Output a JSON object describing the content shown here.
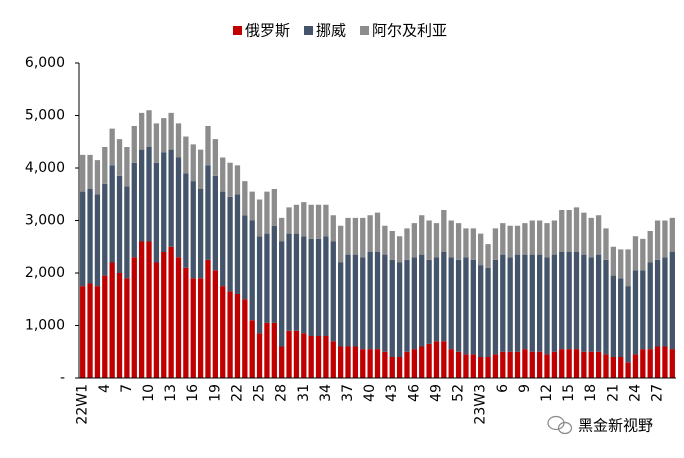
{
  "chart_data": {
    "type": "stacked_bar",
    "legend_position": "top",
    "categories": [
      "22W1",
      null,
      null,
      "4",
      null,
      null,
      "7",
      null,
      null,
      "10",
      null,
      null,
      "13",
      null,
      null,
      "16",
      null,
      null,
      "19",
      null,
      null,
      "22",
      null,
      null,
      "25",
      null,
      null,
      "28",
      null,
      null,
      "31",
      null,
      null,
      "34",
      null,
      null,
      "37",
      null,
      null,
      "40",
      null,
      null,
      "43",
      null,
      null,
      "46",
      null,
      null,
      "49",
      null,
      null,
      "52",
      null,
      null,
      "23W3",
      null,
      null,
      "6",
      null,
      null,
      "9",
      null,
      null,
      "12",
      null,
      null,
      "15",
      null,
      null,
      "18",
      null,
      null,
      "21",
      null,
      null,
      "24",
      null,
      null,
      "27",
      null,
      null
    ],
    "series": [
      {
        "name": "俄罗斯",
        "color": "#c00000",
        "values": [
          1750,
          1800,
          1750,
          1950,
          2200,
          2000,
          1900,
          2300,
          2600,
          2600,
          2200,
          2400,
          2500,
          2300,
          2100,
          1900,
          1900,
          2250,
          2050,
          1750,
          1650,
          1600,
          1500,
          1100,
          850,
          1050,
          1050,
          600,
          900,
          900,
          850,
          800,
          800,
          800,
          700,
          600,
          600,
          600,
          550,
          550,
          550,
          500,
          400,
          400,
          500,
          550,
          600,
          650,
          700,
          700,
          550,
          500,
          450,
          450,
          400,
          400,
          450,
          500,
          500,
          500,
          550,
          500,
          500,
          450,
          500,
          550,
          550,
          550,
          500,
          500,
          500,
          450,
          400,
          400,
          300,
          450,
          550,
          550,
          600,
          600,
          550
        ]
      },
      {
        "name": "挪威",
        "color": "#44546a",
        "values": [
          1800,
          1800,
          1750,
          1750,
          1850,
          1850,
          1750,
          1800,
          1750,
          1800,
          1900,
          1900,
          1850,
          1900,
          1800,
          1850,
          1700,
          1800,
          1800,
          1800,
          1800,
          1900,
          1600,
          1900,
          1850,
          1700,
          1850,
          2000,
          1850,
          1850,
          1850,
          1850,
          1850,
          1900,
          1900,
          1600,
          1750,
          1750,
          1750,
          1850,
          1850,
          1850,
          1850,
          1800,
          1750,
          1750,
          1750,
          1600,
          1600,
          1700,
          1750,
          1750,
          1850,
          1800,
          1750,
          1700,
          1800,
          1850,
          1800,
          1850,
          1800,
          1850,
          1850,
          1850,
          1850,
          1850,
          1850,
          1850,
          1850,
          1800,
          1850,
          1800,
          1550,
          1500,
          1450,
          1600,
          1500,
          1650,
          1650,
          1700,
          1850
        ]
      },
      {
        "name": "阿尔及利亚",
        "color": "#8c8c8c",
        "values": [
          700,
          650,
          650,
          700,
          700,
          700,
          750,
          700,
          700,
          700,
          750,
          650,
          700,
          650,
          700,
          700,
          750,
          750,
          700,
          650,
          650,
          550,
          650,
          550,
          700,
          800,
          700,
          450,
          500,
          550,
          650,
          650,
          650,
          600,
          500,
          700,
          700,
          700,
          750,
          700,
          750,
          550,
          550,
          500,
          600,
          650,
          750,
          750,
          650,
          800,
          700,
          700,
          550,
          600,
          600,
          450,
          600,
          600,
          600,
          550,
          600,
          650,
          650,
          650,
          650,
          800,
          800,
          850,
          800,
          750,
          750,
          600,
          550,
          550,
          700,
          650,
          600,
          600,
          750,
          700,
          650
        ]
      }
    ],
    "ylim": [
      0,
      6000
    ],
    "yticks": [
      {
        "value": 0,
        "label": "-"
      },
      {
        "value": 1000,
        "label": "1,000"
      },
      {
        "value": 2000,
        "label": "2,000"
      },
      {
        "value": 3000,
        "label": "3,000"
      },
      {
        "value": 4000,
        "label": "4,000"
      },
      {
        "value": 5000,
        "label": "5,000"
      },
      {
        "value": 6000,
        "label": "6,000"
      }
    ],
    "watermark": "黑金新视野"
  }
}
